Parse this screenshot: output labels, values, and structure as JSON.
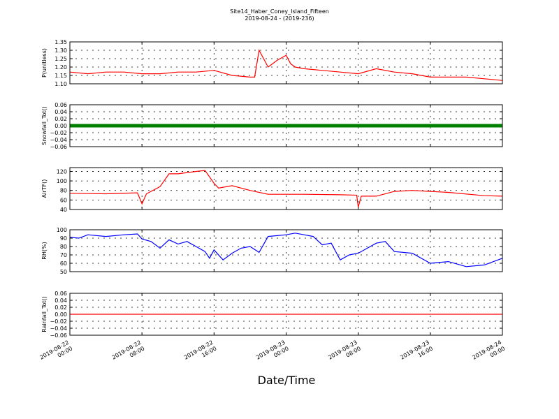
{
  "figure": {
    "title_line1": "Site14_Haber_Coney_Island_Fifteen",
    "title_line2": "2019-08-24 - (2019-236)",
    "xlabel": "Date/Time"
  },
  "chart_data": [
    {
      "type": "line",
      "ylabel": "P(unitless)",
      "ylim": [
        1.1,
        1.35
      ],
      "yticks": [
        1.1,
        1.15,
        1.2,
        1.25,
        1.3,
        1.35
      ],
      "ytick_labels": [
        "1.10",
        "1.15",
        "1.20",
        "1.25",
        "1.30",
        "1.35"
      ],
      "grid": true,
      "color": "#ff0000",
      "x": [
        "2019-08-22 00:00",
        "2019-08-22 02:00",
        "2019-08-22 04:00",
        "2019-08-22 06:00",
        "2019-08-22 08:00",
        "2019-08-22 10:00",
        "2019-08-22 12:00",
        "2019-08-22 14:00",
        "2019-08-22 16:00",
        "2019-08-22 18:00",
        "2019-08-22 20:00",
        "2019-08-22 20:30",
        "2019-08-22 21:00",
        "2019-08-22 22:00",
        "2019-08-22 23:00",
        "2019-08-23 00:00",
        "2019-08-23 00:30",
        "2019-08-23 01:00",
        "2019-08-23 02:00",
        "2019-08-23 04:00",
        "2019-08-23 06:00",
        "2019-08-23 08:00",
        "2019-08-23 10:00",
        "2019-08-23 12:00",
        "2019-08-23 14:00",
        "2019-08-23 16:00",
        "2019-08-23 18:00",
        "2019-08-23 20:00",
        "2019-08-23 22:00",
        "2019-08-24 00:00"
      ],
      "values": [
        1.17,
        1.16,
        1.17,
        1.17,
        1.16,
        1.16,
        1.17,
        1.17,
        1.18,
        1.15,
        1.14,
        1.14,
        1.3,
        1.2,
        1.24,
        1.27,
        1.22,
        1.2,
        1.19,
        1.18,
        1.17,
        1.16,
        1.19,
        1.17,
        1.16,
        1.14,
        1.14,
        1.14,
        1.13,
        1.12
      ]
    },
    {
      "type": "scatter",
      "ylabel": "Snowfall_Tot()",
      "ylim": [
        -0.06,
        0.06
      ],
      "yticks": [
        -0.06,
        -0.04,
        -0.02,
        0.0,
        0.02,
        0.04,
        0.06
      ],
      "ytick_labels": [
        "−0.06",
        "−0.04",
        "−0.02",
        "0.00",
        "0.02",
        "0.04",
        "0.06"
      ],
      "grid": true,
      "color": "#008000",
      "x": [
        "2019-08-22 00:00",
        "2019-08-24 00:00"
      ],
      "values": [
        0.0,
        0.0
      ]
    },
    {
      "type": "line",
      "ylabel": "AirTF()",
      "ylim": [
        40,
        128
      ],
      "yticks": [
        40,
        60,
        80,
        100,
        120
      ],
      "ytick_labels": [
        "40",
        "60",
        "80",
        "100",
        "120"
      ],
      "grid": true,
      "color": "#ff0000",
      "x": [
        "2019-08-22 00:00",
        "2019-08-22 04:00",
        "2019-08-22 07:30",
        "2019-08-22 08:00",
        "2019-08-22 08:30",
        "2019-08-22 10:00",
        "2019-08-22 11:00",
        "2019-08-22 12:00",
        "2019-08-22 14:00",
        "2019-08-22 15:00",
        "2019-08-22 16:00",
        "2019-08-22 16:30",
        "2019-08-22 18:00",
        "2019-08-22 20:00",
        "2019-08-22 22:00",
        "2019-08-23 02:00",
        "2019-08-23 06:00",
        "2019-08-23 07:50",
        "2019-08-23 08:00",
        "2019-08-23 08:20",
        "2019-08-23 10:00",
        "2019-08-23 12:00",
        "2019-08-23 14:00",
        "2019-08-23 16:00",
        "2019-08-23 18:00",
        "2019-08-23 22:00",
        "2019-08-24 00:00"
      ],
      "values": [
        74,
        73,
        75,
        52,
        73,
        88,
        115,
        115,
        120,
        122,
        95,
        85,
        90,
        80,
        72,
        72,
        71,
        70,
        45,
        68,
        68,
        78,
        80,
        78,
        76,
        69,
        68
      ]
    },
    {
      "type": "line",
      "ylabel": "RH(%)",
      "ylim": [
        50,
        100
      ],
      "yticks": [
        50,
        60,
        70,
        80,
        90,
        100
      ],
      "ytick_labels": [
        "50",
        "60",
        "70",
        "80",
        "90",
        "100"
      ],
      "grid": true,
      "color": "#0000ff",
      "x": [
        "2019-08-22 00:00",
        "2019-08-22 01:00",
        "2019-08-22 02:00",
        "2019-08-22 04:00",
        "2019-08-22 06:00",
        "2019-08-22 07:30",
        "2019-08-22 08:00",
        "2019-08-22 09:00",
        "2019-08-22 10:00",
        "2019-08-22 11:00",
        "2019-08-22 12:00",
        "2019-08-22 13:00",
        "2019-08-22 14:00",
        "2019-08-22 15:00",
        "2019-08-22 15:30",
        "2019-08-22 16:00",
        "2019-08-22 17:00",
        "2019-08-22 18:00",
        "2019-08-22 19:00",
        "2019-08-22 20:00",
        "2019-08-22 21:00",
        "2019-08-22 22:00",
        "2019-08-23 00:00",
        "2019-08-23 01:00",
        "2019-08-23 02:00",
        "2019-08-23 03:00",
        "2019-08-23 04:00",
        "2019-08-23 05:00",
        "2019-08-23 06:00",
        "2019-08-23 07:00",
        "2019-08-23 08:00",
        "2019-08-23 10:00",
        "2019-08-23 11:00",
        "2019-08-23 12:00",
        "2019-08-23 14:00",
        "2019-08-23 16:00",
        "2019-08-23 18:00",
        "2019-08-23 20:00",
        "2019-08-23 22:00",
        "2019-08-24 00:00"
      ],
      "values": [
        91,
        90,
        94,
        92,
        94,
        95,
        89,
        86,
        78,
        88,
        83,
        86,
        80,
        74,
        66,
        76,
        64,
        72,
        78,
        80,
        73,
        92,
        94,
        96,
        94,
        92,
        82,
        84,
        64,
        70,
        72,
        84,
        86,
        74,
        72,
        60,
        62,
        56,
        58,
        66
      ]
    },
    {
      "type": "line",
      "ylabel": "Rainfall_Tot()",
      "ylim": [
        -0.06,
        0.06
      ],
      "yticks": [
        -0.06,
        -0.04,
        -0.02,
        0.0,
        0.02,
        0.04,
        0.06
      ],
      "ytick_labels": [
        "−0.06",
        "−0.04",
        "−0.02",
        "0.00",
        "0.02",
        "0.04",
        "0.06"
      ],
      "grid": true,
      "color": "#ff0000",
      "x": [
        "2019-08-22 00:00",
        "2019-08-24 00:00"
      ],
      "values": [
        0.0,
        0.0
      ]
    }
  ],
  "xaxis": {
    "ticks": [
      {
        "line1": "2019-08-22",
        "line2": "00:00"
      },
      {
        "line1": "2019-08-22",
        "line2": "08:00"
      },
      {
        "line1": "2019-08-22",
        "line2": "16:00"
      },
      {
        "line1": "2019-08-23",
        "line2": "00:00"
      },
      {
        "line1": "2019-08-23",
        "line2": "08:00"
      },
      {
        "line1": "2019-08-23",
        "line2": "16:00"
      },
      {
        "line1": "2019-08-24",
        "line2": "00:00"
      }
    ],
    "range": [
      "2019-08-22 00:00",
      "2019-08-24 00:00"
    ]
  }
}
